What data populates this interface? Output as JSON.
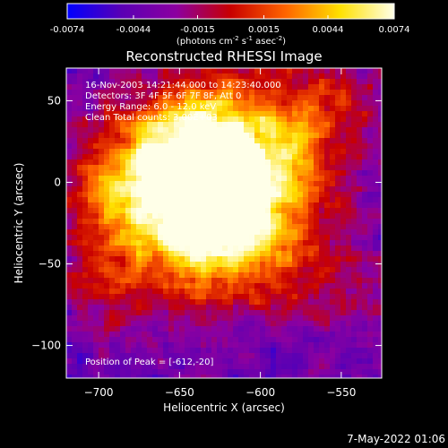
{
  "chart_data": {
    "type": "heatmap",
    "title": "Reconstructed RHESSI Image",
    "xlabel": "Heliocentric X (arcsec)",
    "ylabel": "Heliocentric Y (arcsec)",
    "xlim": [
      -720,
      -525
    ],
    "ylim": [
      -120,
      70
    ],
    "xticks": [
      -700,
      -650,
      -600,
      -550
    ],
    "yticks": [
      50,
      0,
      -50,
      -100
    ],
    "colorbar": {
      "range": [
        -0.0074,
        0.0074
      ],
      "ticks": [
        "-0.0074",
        "-0.0044",
        "-0.0015",
        "0.0015",
        "0.0044",
        "0.0074"
      ],
      "unit_main": "(photons cm",
      "unit_sup1": "-2",
      "unit_mid1": " s",
      "unit_sup2": "-1",
      "unit_mid2": " asec",
      "unit_sup3": "-2",
      "unit_end": ")",
      "colors": [
        "#0000ff",
        "#5a00b4",
        "#8c00a0",
        "#c80000",
        "#ff6400",
        "#ffe000",
        "#ffffe8"
      ]
    },
    "annotations": [
      "16-Nov-2003 14:21:44.000 to 14:23:40.000",
      "Detectors: 3F 4F 5F 6F 7F 8F, Att 0",
      "Energy Range: 6.0 - 12.0 keV",
      "Clean    Total counts: 3.00E+03"
    ],
    "peak_label": "Position of Peak = [-612,-20]",
    "peak": [
      -612,
      -20
    ],
    "bright_blobs": [
      {
        "x": -612,
        "y": -20,
        "amp": 1.0
      },
      {
        "x": -636,
        "y": 0,
        "amp": 0.8
      },
      {
        "x": -660,
        "y": 18,
        "amp": 0.6
      },
      {
        "x": -690,
        "y": -10,
        "amp": 0.55
      },
      {
        "x": -625,
        "y": 35,
        "amp": 0.55
      },
      {
        "x": -645,
        "y": -45,
        "amp": 0.45
      },
      {
        "x": -580,
        "y": 20,
        "amp": 0.4
      },
      {
        "x": -560,
        "y": 48,
        "amp": 0.35
      },
      {
        "x": -700,
        "y": -60,
        "amp": 0.3
      },
      {
        "x": -560,
        "y": -60,
        "amp": 0.3
      }
    ]
  },
  "footer": {
    "timestamp": "7-May-2022 01:06"
  }
}
